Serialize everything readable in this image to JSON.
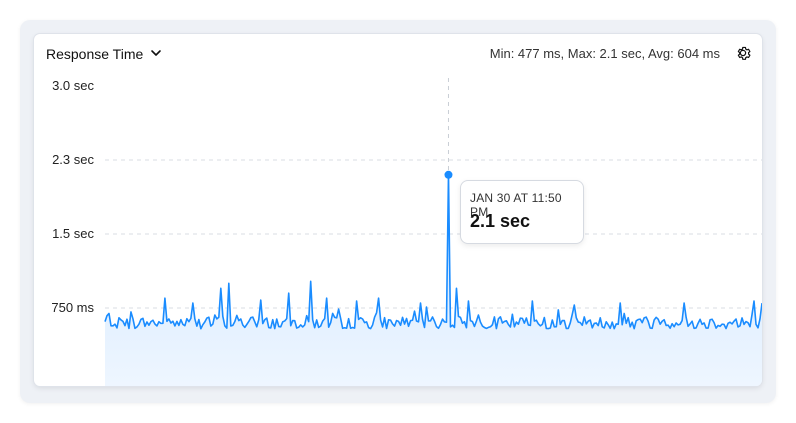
{
  "header": {
    "title": "Response Time",
    "stats": "Min: 477 ms, Max: 2.1 sec, Avg: 604 ms"
  },
  "icons": {
    "dropdown": "chevron-down-icon",
    "settings": "gear-icon"
  },
  "colors": {
    "series": "#1a8cff",
    "fill_top": "#cfe6ff",
    "fill_bottom": "#eef6ff",
    "grid": "#d9dde3"
  },
  "tooltip": {
    "date": "JAN 30 AT 11:50 PM",
    "value": "2.1 sec"
  },
  "chart_data": {
    "type": "area",
    "title": "Response Time",
    "y_unit": "seconds",
    "ylim": [
      0,
      3.0
    ],
    "y_ticks": [
      {
        "value": 0.75,
        "label": "750 ms"
      },
      {
        "value": 1.5,
        "label": "1.5 sec"
      },
      {
        "value": 2.25,
        "label": "2.3 sec"
      },
      {
        "value": 3.0,
        "label": "3.0 sec"
      }
    ],
    "grid": true,
    "stats": {
      "min_ms": 477,
      "max_s": 2.1,
      "avg_ms": 604
    },
    "highlight": {
      "label": "JAN 30 AT 11:50 PM",
      "value": 2.1
    },
    "spikes": [
      {
        "index": 30,
        "value": 0.85
      },
      {
        "index": 44,
        "value": 0.8
      },
      {
        "index": 58,
        "value": 0.95
      },
      {
        "index": 62,
        "value": 1.0
      },
      {
        "index": 78,
        "value": 0.83
      },
      {
        "index": 92,
        "value": 0.9
      },
      {
        "index": 103,
        "value": 1.02
      },
      {
        "index": 111,
        "value": 0.85
      },
      {
        "index": 126,
        "value": 0.82
      },
      {
        "index": 137,
        "value": 0.85
      },
      {
        "index": 158,
        "value": 0.8
      },
      {
        "index": 172,
        "value": 2.1
      },
      {
        "index": 176,
        "value": 0.95
      },
      {
        "index": 182,
        "value": 0.82
      },
      {
        "index": 214,
        "value": 0.82
      },
      {
        "index": 235,
        "value": 0.78
      },
      {
        "index": 258,
        "value": 0.8
      },
      {
        "index": 290,
        "value": 0.8
      },
      {
        "index": 325,
        "value": 0.82
      },
      {
        "index": 329,
        "value": 0.8
      }
    ],
    "points": 330,
    "baseline_s": 0.6
  }
}
